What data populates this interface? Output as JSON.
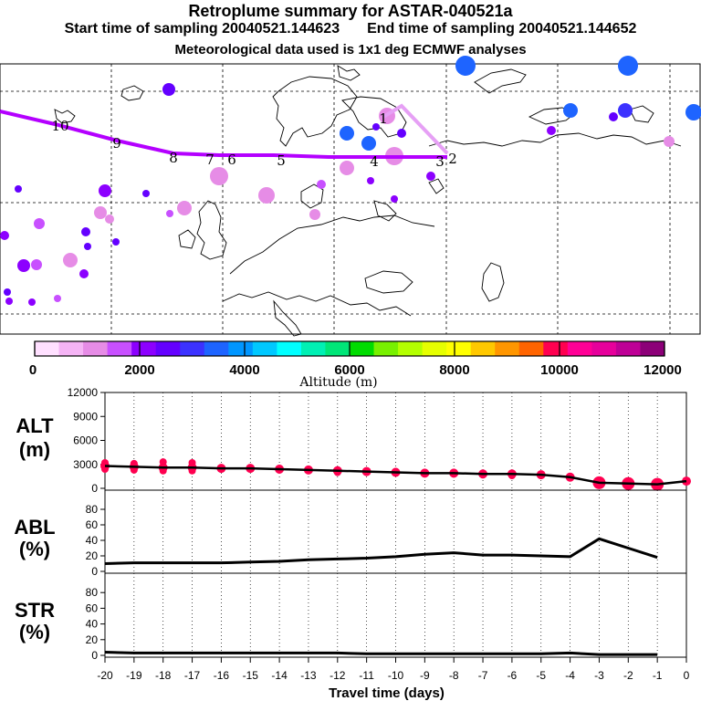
{
  "header": {
    "title": "Retroplume summary for ASTAR-040521a",
    "start_label": "Start time of sampling 20040521.144623",
    "end_label": "End time of sampling 20040521.144652",
    "met_label": "Meteorological data used is 1x1 deg ECMWF analyses"
  },
  "colorbar": {
    "colors": [
      "#ffe0ff",
      "#f5b4f5",
      "#e68ce6",
      "#c850ff",
      "#8c00ff",
      "#6400ff",
      "#3c32ff",
      "#1e64ff",
      "#0096ff",
      "#00c8ff",
      "#00ffff",
      "#00f0b4",
      "#00e678",
      "#00dc00",
      "#78f000",
      "#b4ff00",
      "#e6ff00",
      "#ffff00",
      "#ffc800",
      "#ff9600",
      "#ff6400",
      "#ff0050",
      "#ff0096",
      "#e6009b",
      "#be0096",
      "#8c0078"
    ],
    "tick_labels": [
      "0",
      "2000",
      "4000",
      "6000",
      "8000",
      "10000",
      "12000"
    ],
    "title": "Altitude (m)"
  },
  "map": {
    "line_color": "#b400ff",
    "secondary_line_color": "#e6a0f5",
    "day_markers": [
      {
        "label": "10",
        "color": "#000000"
      },
      {
        "label": "9",
        "color": "#000000"
      },
      {
        "label": "8",
        "color": "#000000"
      },
      {
        "label": "7",
        "color": "#000000"
      },
      {
        "label": "6",
        "color": "#000000"
      },
      {
        "label": "5",
        "color": "#000000"
      },
      {
        "label": "4",
        "color": "#000000"
      },
      {
        "label": "3",
        "color": "#000000"
      },
      {
        "label": "2",
        "color": "#000000"
      },
      {
        "label": "1",
        "color": "#000000"
      }
    ]
  },
  "chart_data": [
    {
      "type": "scatter",
      "panel": "ALT",
      "ylabel_line1": "ALT",
      "ylabel_line2": "(m)",
      "ylim": [
        0,
        12000
      ],
      "yticks": [
        "0",
        "3000",
        "6000",
        "9000",
        "12000"
      ],
      "ytick_values": [
        0,
        3000,
        6000,
        9000,
        12000
      ],
      "median_line": {
        "x": [
          -20,
          -19,
          -18,
          -17,
          -16,
          -15,
          -14,
          -13,
          -12,
          -11,
          -10,
          -9,
          -8,
          -7,
          -6,
          -5,
          -4,
          -3,
          -2,
          -1,
          0
        ],
        "y": [
          2800,
          2700,
          2600,
          2600,
          2500,
          2500,
          2400,
          2300,
          2200,
          2100,
          2000,
          1900,
          1900,
          1800,
          1800,
          1700,
          1400,
          700,
          600,
          500,
          900
        ]
      },
      "cluster_points": {
        "x": [
          -20,
          -20,
          -19,
          -19,
          -18,
          -18,
          -17,
          -17,
          -16,
          -15,
          -14,
          -13,
          -12,
          -11,
          -10,
          -9,
          -8,
          -7,
          -6,
          -5,
          -4,
          -3,
          -2,
          -1
        ],
        "y": [
          3200,
          2400,
          3100,
          2300,
          3300,
          2200,
          3200,
          2200,
          2400,
          2400,
          2300,
          2300,
          2000,
          2000,
          2100,
          1900,
          1800,
          1700,
          1600,
          1600,
          1400,
          800,
          800,
          700
        ]
      }
    },
    {
      "type": "line",
      "panel": "ABL",
      "ylabel_line1": "ABL",
      "ylabel_line2": "(%)",
      "ylim": [
        0,
        100
      ],
      "yticks": [
        "0",
        "20",
        "40",
        "60",
        "80"
      ],
      "ytick_values": [
        0,
        20,
        40,
        60,
        80
      ],
      "x": [
        -20,
        -19,
        -18,
        -17,
        -16,
        -15,
        -14,
        -13,
        -12,
        -11,
        -10,
        -9,
        -8,
        -7,
        -6,
        -5,
        -4,
        -3,
        -2,
        -1
      ],
      "y": [
        10,
        11,
        11,
        11,
        11,
        12,
        13,
        15,
        16,
        17,
        19,
        22,
        24,
        21,
        21,
        20,
        19,
        42,
        30,
        18
      ]
    },
    {
      "type": "line",
      "panel": "STR",
      "ylabel_line1": "STR",
      "ylabel_line2": "(%)",
      "ylim": [
        0,
        100
      ],
      "yticks": [
        "0",
        "20",
        "40",
        "60",
        "80"
      ],
      "ytick_values": [
        0,
        20,
        40,
        60,
        80
      ],
      "x": [
        -20,
        -19,
        -18,
        -17,
        -16,
        -15,
        -14,
        -13,
        -12,
        -11,
        -10,
        -9,
        -8,
        -7,
        -6,
        -5,
        -4,
        -3,
        -2,
        -1
      ],
      "y": [
        4,
        3,
        3,
        3,
        3,
        3,
        3,
        3,
        3,
        2,
        2,
        2,
        2,
        2,
        2,
        2,
        3,
        1,
        1,
        1
      ]
    }
  ],
  "x_axis": {
    "title": "Travel time (days)",
    "ticks": [
      "-20",
      "-19",
      "-18",
      "-17",
      "-16",
      "-15",
      "-14",
      "-13",
      "-12",
      "-11",
      "-10",
      "-9",
      "-8",
      "-7",
      "-6",
      "-5",
      "-4",
      "-3",
      "-2",
      "-1",
      "0"
    ],
    "tick_values": [
      -20,
      -19,
      -18,
      -17,
      -16,
      -15,
      -14,
      -13,
      -12,
      -11,
      -10,
      -9,
      -8,
      -7,
      -6,
      -5,
      -4,
      -3,
      -2,
      -1,
      0
    ]
  }
}
